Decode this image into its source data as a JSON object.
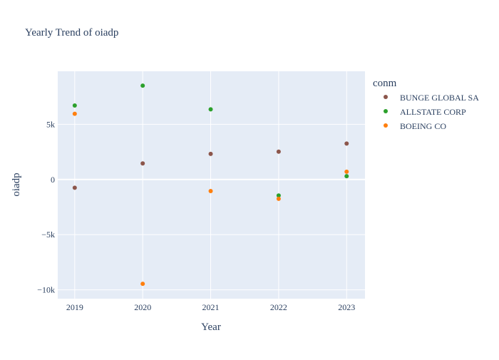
{
  "chart_data": {
    "type": "scatter",
    "title": "Yearly Trend of oiadp",
    "xlabel": "Year",
    "ylabel": "oiadp",
    "x_ticks": [
      "2019",
      "2020",
      "2021",
      "2022",
      "2023"
    ],
    "y_ticks": [
      {
        "value": 5000,
        "label": "5k"
      },
      {
        "value": 0,
        "label": "0"
      },
      {
        "value": -5000,
        "label": "−5k"
      },
      {
        "value": -10000,
        "label": "−10k"
      }
    ],
    "xlim": [
      2018.75,
      2023.27
    ],
    "ylim": [
      -10800,
      9800
    ],
    "grid": true,
    "legend_title": "conm",
    "legend_position": "right",
    "series": [
      {
        "name": "BUNGE GLOBAL SA",
        "color": "#8c564b",
        "points": [
          {
            "x": 2019,
            "y": -750
          },
          {
            "x": 2020,
            "y": 1450
          },
          {
            "x": 2021,
            "y": 2320
          },
          {
            "x": 2022,
            "y": 2520
          },
          {
            "x": 2023,
            "y": 3250
          }
        ]
      },
      {
        "name": "ALLSTATE CORP",
        "color": "#2ca02c",
        "points": [
          {
            "x": 2019,
            "y": 6700
          },
          {
            "x": 2020,
            "y": 8500
          },
          {
            "x": 2021,
            "y": 6350
          },
          {
            "x": 2022,
            "y": -1450
          },
          {
            "x": 2023,
            "y": 300
          }
        ]
      },
      {
        "name": "BOEING CO",
        "color": "#ff7f0e",
        "points": [
          {
            "x": 2019,
            "y": 5950
          },
          {
            "x": 2020,
            "y": -9450
          },
          {
            "x": 2021,
            "y": -1050
          },
          {
            "x": 2022,
            "y": -1750
          },
          {
            "x": 2023,
            "y": 700
          }
        ]
      }
    ]
  }
}
